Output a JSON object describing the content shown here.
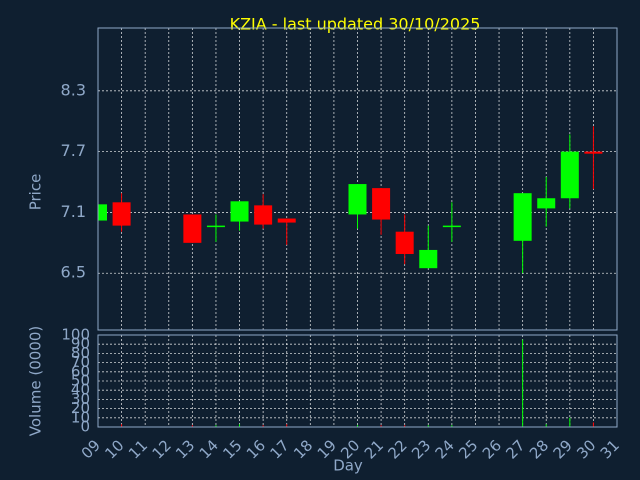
{
  "chart_data": {
    "type": "candlestick",
    "title": "KZIA - last updated 30/10/2025",
    "x_label": "Day",
    "y_label": "Price",
    "volume_label": "Volume (0000)",
    "categories": [
      "09",
      "10",
      "11",
      "12",
      "13",
      "14",
      "15",
      "16",
      "17",
      "18",
      "19",
      "20",
      "21",
      "22",
      "23",
      "24",
      "25",
      "26",
      "27",
      "28",
      "29",
      "30",
      "31"
    ],
    "open": [
      7.02,
      7.2,
      null,
      null,
      7.08,
      6.96,
      7.01,
      7.17,
      7.04,
      null,
      null,
      7.08,
      7.34,
      6.91,
      6.55,
      6.96,
      null,
      null,
      6.82,
      7.14,
      7.24,
      7.7,
      null
    ],
    "high": [
      7.18,
      7.29,
      null,
      null,
      7.08,
      7.08,
      7.21,
      7.28,
      7.04,
      null,
      null,
      7.38,
      7.34,
      7.08,
      6.97,
      7.2,
      null,
      null,
      7.29,
      7.45,
      7.87,
      7.95,
      null
    ],
    "low": [
      7.02,
      6.91,
      null,
      null,
      6.8,
      6.81,
      6.92,
      6.94,
      6.78,
      null,
      null,
      6.94,
      6.88,
      6.59,
      6.55,
      6.81,
      null,
      null,
      6.5,
      6.96,
      7.14,
      7.33,
      null
    ],
    "close": [
      7.18,
      6.97,
      null,
      null,
      6.8,
      6.97,
      7.21,
      6.98,
      7.0,
      null,
      null,
      7.38,
      7.03,
      6.69,
      6.73,
      6.97,
      null,
      null,
      7.29,
      7.24,
      7.7,
      7.68,
      null
    ],
    "volume": [
      2,
      3,
      null,
      null,
      2,
      2,
      3,
      2,
      3,
      null,
      null,
      2,
      2,
      2,
      2,
      2,
      null,
      null,
      95,
      3,
      10,
      5,
      null
    ],
    "up_color": "#00ff00",
    "down_color": "#ff0000",
    "ylim": [
      5.94,
      8.92
    ],
    "yticks": [
      6.5,
      7.1,
      7.7,
      8.3
    ],
    "volume_ylim": [
      0,
      100
    ],
    "volume_ticks": [
      0,
      10,
      20,
      30,
      40,
      50,
      60,
      70,
      80,
      90,
      100
    ],
    "grid": true
  }
}
